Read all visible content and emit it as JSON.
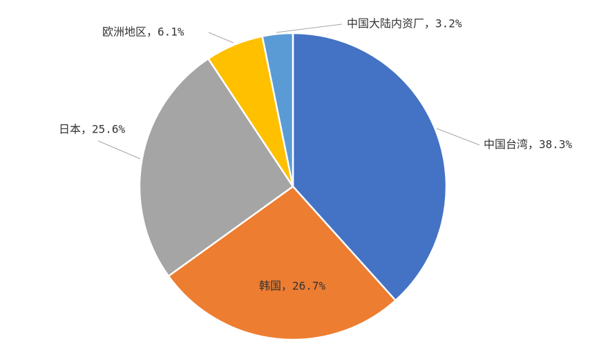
{
  "chart_data": {
    "type": "pie",
    "values": [
      38.3,
      26.7,
      25.6,
      6.1,
      3.2
    ],
    "value_labels": [
      "中国台湾，38.3%",
      "韩国，26.7%",
      "日本，25.6%",
      "欧洲地区，6.1%",
      "中国大陆内资厂，3.2%"
    ],
    "colors": [
      "#4472c4",
      "#ed7d31",
      "#a5a5a5",
      "#ffc000",
      "#5b9bd5"
    ]
  }
}
